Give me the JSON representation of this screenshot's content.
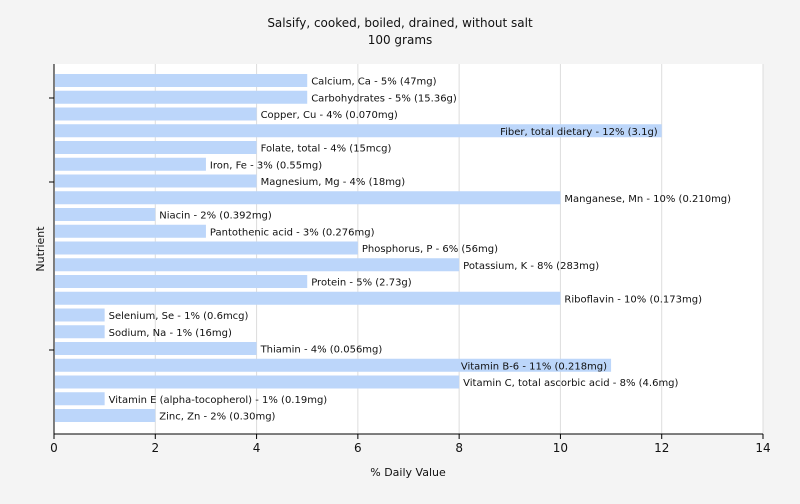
{
  "chart_data": {
    "type": "bar",
    "orientation": "horizontal",
    "title": "Salsify, cooked, boiled, drained, without salt",
    "subtitle": "100 grams",
    "xlabel": "% Daily Value",
    "ylabel": "Nutrient",
    "xlim": [
      0,
      14
    ],
    "xticks": [
      0,
      2,
      4,
      6,
      8,
      10,
      12,
      14
    ],
    "grid": true,
    "bar_color": "#bcd6fa",
    "categories": [
      "Calcium, Ca",
      "Carbohydrates",
      "Copper, Cu",
      "Fiber, total dietary",
      "Folate, total",
      "Iron, Fe",
      "Magnesium, Mg",
      "Manganese, Mn",
      "Niacin",
      "Pantothenic acid",
      "Phosphorus, P",
      "Potassium, K",
      "Protein",
      "Riboflavin",
      "Selenium, Se",
      "Sodium, Na",
      "Thiamin",
      "Vitamin B-6",
      "Vitamin C, total ascorbic acid",
      "Vitamin E (alpha-tocopherol)",
      "Zinc, Zn"
    ],
    "values": [
      5,
      5,
      4,
      12,
      4,
      3,
      4,
      10,
      2,
      3,
      6,
      8,
      5,
      10,
      1,
      1,
      4,
      11,
      8,
      1,
      2
    ],
    "labels": [
      "Calcium, Ca - 5% (47mg)",
      "Carbohydrates - 5% (15.36g)",
      "Copper, Cu - 4% (0.070mg)",
      "Fiber, total dietary - 12% (3.1g)",
      "Folate, total - 4% (15mcg)",
      "Iron, Fe - 3% (0.55mg)",
      "Magnesium, Mg - 4% (18mg)",
      "Manganese, Mn - 10% (0.210mg)",
      "Niacin - 2% (0.392mg)",
      "Pantothenic acid - 3% (0.276mg)",
      "Phosphorus, P - 6% (56mg)",
      "Potassium, K - 8% (283mg)",
      "Protein - 5% (2.73g)",
      "Riboflavin - 10% (0.173mg)",
      "Selenium, Se - 1% (0.6mcg)",
      "Sodium, Na - 1% (16mg)",
      "Thiamin - 4% (0.056mg)",
      "Vitamin B-6 - 11% (0.218mg)",
      "Vitamin C, total ascorbic acid - 8% (4.6mg)",
      "Vitamin E (alpha-tocopherol) - 1% (0.19mg)",
      "Zinc, Zn - 2% (0.30mg)"
    ]
  }
}
